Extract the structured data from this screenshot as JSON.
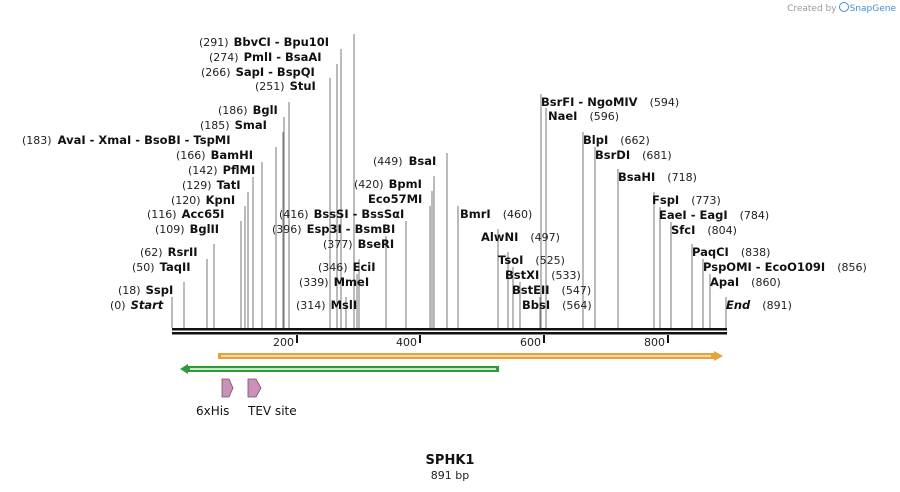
{
  "branding": {
    "created_by": "Created by",
    "product": "SnapGene"
  },
  "sequence": {
    "name": "SPHK1",
    "length_label": "891 bp",
    "length": 891
  },
  "ruler": {
    "ticks": [
      "200",
      "400",
      "600",
      "800"
    ]
  },
  "enzymes": [
    {
      "name": "Start",
      "pos_label": "(0)",
      "kind": "start"
    },
    {
      "name": "SspI",
      "pos_label": "(18)"
    },
    {
      "name": "TaqII",
      "pos_label": "(50)"
    },
    {
      "name": "RsrII",
      "pos_label": "(62)"
    },
    {
      "name": "BglII",
      "pos_label": "(109)"
    },
    {
      "name": "Acc65I",
      "pos_label": "(116)"
    },
    {
      "name": "KpnI",
      "pos_label": "(120)"
    },
    {
      "name": "TatI",
      "pos_label": "(129)"
    },
    {
      "name": "PflMI",
      "pos_label": "(142)"
    },
    {
      "name": "BamHI",
      "pos_label": "(166)"
    },
    {
      "name": "AvaI  - XmaI  - BsoBI  - TspMI",
      "pos_label": "(183)"
    },
    {
      "name": "SmaI",
      "pos_label": "(185)"
    },
    {
      "name": "BglI",
      "pos_label": "(186)"
    },
    {
      "name": "StuI",
      "pos_label": "(251)"
    },
    {
      "name": "SapI  - BspQI",
      "pos_label": "(266)"
    },
    {
      "name": "PmlI  - BsaAI",
      "pos_label": "(274)"
    },
    {
      "name": "BbvCI  - Bpu10I",
      "pos_label": "(291)"
    },
    {
      "name": "MslI",
      "pos_label": "(314)"
    },
    {
      "name": "MmeI",
      "pos_label": "(339)"
    },
    {
      "name": "EciI",
      "pos_label": "(346)"
    },
    {
      "name": "BseRI",
      "pos_label": "(377)"
    },
    {
      "name": "Esp3I  - BsmBI",
      "pos_label": "(396)"
    },
    {
      "name": "BssSI  - BssSαI",
      "pos_label": "(416)"
    },
    {
      "name": "Eco57MI",
      "pos_label": ""
    },
    {
      "name": "BpmI",
      "pos_label": "(420)"
    },
    {
      "name": "BsaI",
      "pos_label": "(449)"
    },
    {
      "name": "BmrI",
      "pos_label": "(460)"
    },
    {
      "name": "AlwNI",
      "pos_label": "(497)"
    },
    {
      "name": "TsoI",
      "pos_label": "(525)"
    },
    {
      "name": "BstXI",
      "pos_label": "(533)"
    },
    {
      "name": "BstEII",
      "pos_label": "(547)"
    },
    {
      "name": "BbsI",
      "pos_label": "(564)"
    },
    {
      "name": "NaeI",
      "pos_label": "(596)"
    },
    {
      "name": "BsrFI  - NgoMIV",
      "pos_label": "(594)"
    },
    {
      "name": "BlpI",
      "pos_label": "(662)"
    },
    {
      "name": "BsrDI",
      "pos_label": "(681)"
    },
    {
      "name": "BsaHI",
      "pos_label": "(718)"
    },
    {
      "name": "FspI",
      "pos_label": "(773)"
    },
    {
      "name": "EaeI  - EagI",
      "pos_label": "(784)"
    },
    {
      "name": "SfcI",
      "pos_label": "(804)"
    },
    {
      "name": "PaqCI",
      "pos_label": "(838)"
    },
    {
      "name": "PspOMI  - EcoO109I",
      "pos_label": "(856)"
    },
    {
      "name": "ApaI",
      "pos_label": "(860)"
    },
    {
      "name": "End",
      "pos_label": "(891)",
      "kind": "end"
    }
  ],
  "features": [
    {
      "type": "arrow-right",
      "color": "#e8a23a",
      "inner": "#f6d6a8"
    },
    {
      "type": "arrow-left",
      "color": "#2e9a3a",
      "inner": "#c7ecc2"
    },
    {
      "label": "6xHis",
      "color": "#c990b8"
    },
    {
      "label": "TEV site",
      "color": "#c990b8"
    }
  ]
}
